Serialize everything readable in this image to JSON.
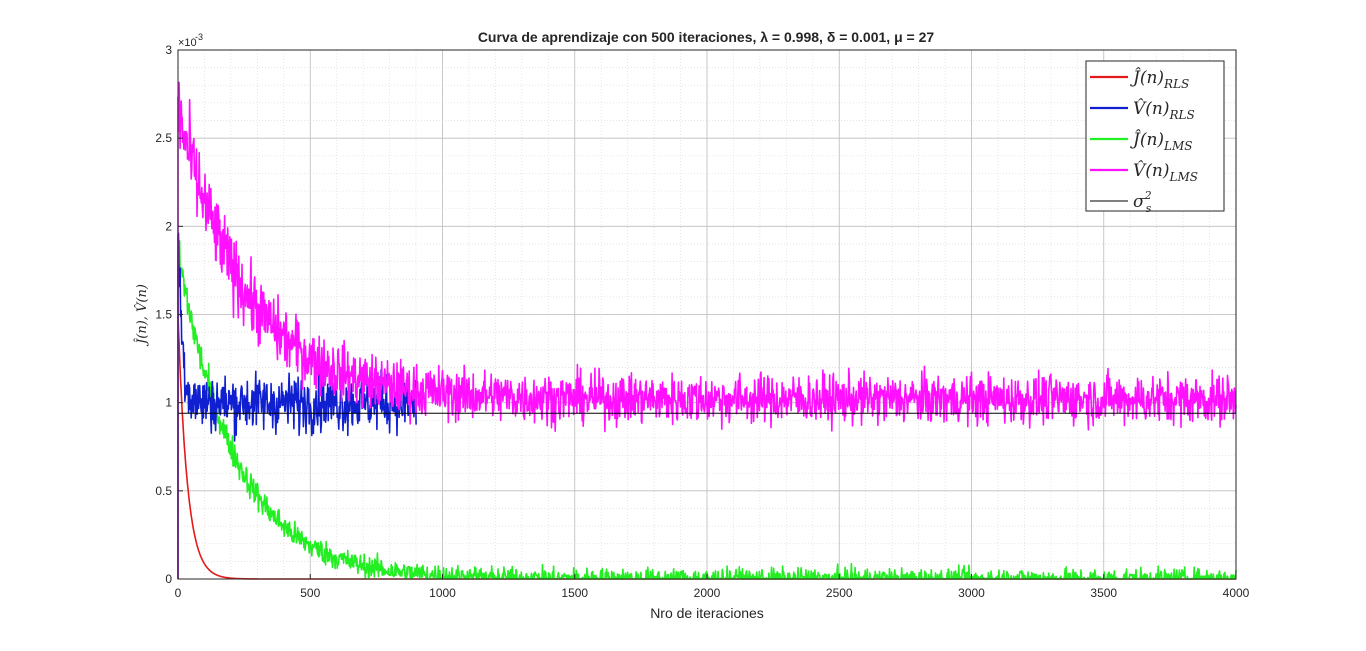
{
  "chart_data": {
    "type": "line",
    "title": "Curva de aprendizaje con 500 iteraciones, λ = 0.998, δ = 0.001, μ = 27",
    "xlabel": "Nro de iteraciones",
    "ylabel": "Ĵ(n), V̂(n)",
    "y_exponent_label": "×10",
    "y_exponent_power": "-3",
    "xlim": [
      0,
      4000
    ],
    "ylim": [
      0,
      3
    ],
    "x_ticks": [
      "0",
      "500",
      "1000",
      "1500",
      "2000",
      "2500",
      "3000",
      "3500",
      "4000"
    ],
    "y_ticks": [
      "0",
      "0.5",
      "1",
      "1.5",
      "2",
      "2.5",
      "3"
    ],
    "grid": true,
    "legend_position": "top-right",
    "series": [
      {
        "name": "Ĵ(n)",
        "subscript": "RLS",
        "color": "#e41a1a",
        "model": "exp",
        "start": 1.5,
        "end": 0.0,
        "tau": 35,
        "noise": 0.0,
        "x_range": [
          0,
          4000
        ]
      },
      {
        "name": "V̂(n)",
        "subscript": "RLS",
        "color": "#1020d0",
        "model": "flat",
        "start": 2.05,
        "end": 1.0,
        "tau": 15,
        "noise": 0.08,
        "x_range": [
          0,
          900
        ]
      },
      {
        "name": "Ĵ(n)",
        "subscript": "LMS",
        "color": "#22ee22",
        "model": "exp",
        "start": 1.85,
        "end": 0.0,
        "tau": 220,
        "noise": 0.03,
        "x_range": [
          0,
          4000
        ]
      },
      {
        "name": "V̂(n)",
        "subscript": "LMS",
        "color": "#ff11ff",
        "model": "exp",
        "start": 2.65,
        "end": 1.02,
        "tau": 260,
        "noise": 0.07,
        "x_range": [
          0,
          4000
        ]
      },
      {
        "name": "σ",
        "subscript": "s",
        "superscript": "2",
        "color": "#000000",
        "model": "const",
        "value": 0.94,
        "x_range": [
          0,
          4000
        ]
      }
    ]
  }
}
